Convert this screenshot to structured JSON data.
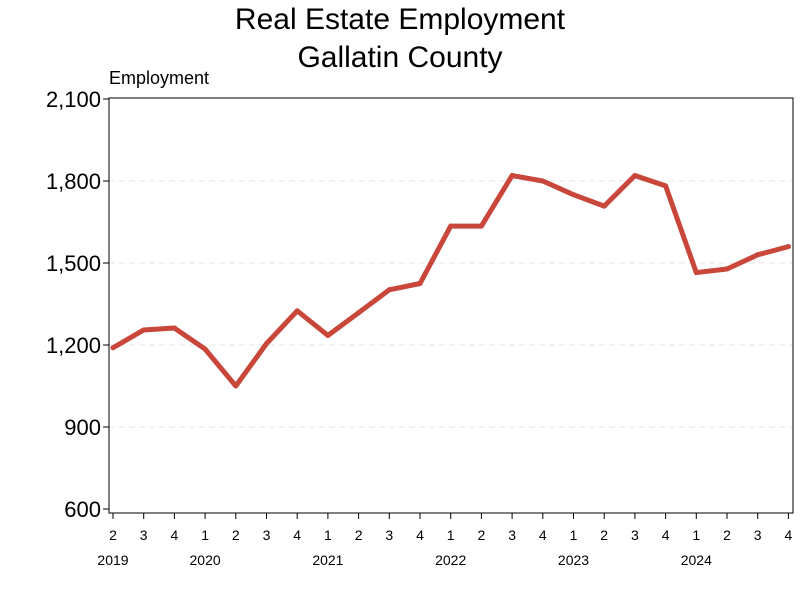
{
  "chart_data": {
    "type": "line",
    "title_lines": [
      "Real Estate Employment",
      "Gallatin County"
    ],
    "ylabel": "Employment",
    "ylim": [
      600,
      2100
    ],
    "yticks": [
      600,
      900,
      1200,
      1500,
      1800,
      2100
    ],
    "ytick_labels": [
      "600",
      "900",
      "1,200",
      "1,500",
      "1,800",
      "2,100"
    ],
    "quarters": [
      "2",
      "3",
      "4",
      "1",
      "2",
      "3",
      "4",
      "1",
      "2",
      "3",
      "4",
      "1",
      "2",
      "3",
      "4",
      "1",
      "2",
      "3",
      "4",
      "1",
      "2",
      "3",
      "4"
    ],
    "years": [
      {
        "label": "2019",
        "index": 0
      },
      {
        "label": "2020",
        "index": 3
      },
      {
        "label": "2021",
        "index": 7
      },
      {
        "label": "2022",
        "index": 11
      },
      {
        "label": "2023",
        "index": 15
      },
      {
        "label": "2024",
        "index": 19
      }
    ],
    "grid": "horizontal-dashed",
    "series": [
      {
        "color": "#c8473a",
        "values": [
          1190,
          1255,
          1262,
          1185,
          1050,
          1205,
          1325,
          1235,
          1318,
          1402,
          1425,
          1635,
          1635,
          1820,
          1800,
          1750,
          1708,
          1820,
          1782,
          1465,
          1478,
          1530,
          1560
        ]
      }
    ]
  }
}
